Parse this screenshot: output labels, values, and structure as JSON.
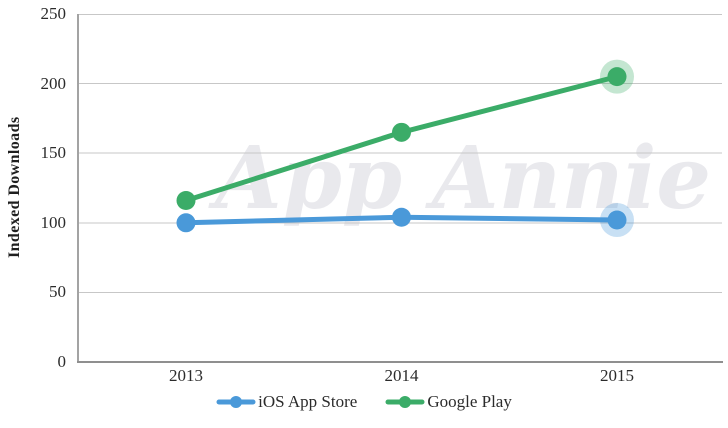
{
  "chart": {
    "y_axis_title": "Indexed Downloads",
    "watermark": "App Annie"
  },
  "legend": {
    "items": [
      {
        "label": "iOS App Store",
        "color": "#4A99D9"
      },
      {
        "label": "Google Play",
        "color": "#3BAC68"
      }
    ]
  },
  "chart_data": {
    "type": "line",
    "categories": [
      "2013",
      "2014",
      "2015"
    ],
    "series": [
      {
        "name": "iOS App Store",
        "color": "#4A99D9",
        "values": [
          100,
          104,
          102
        ]
      },
      {
        "name": "Google Play",
        "color": "#3BAC68",
        "values": [
          116,
          165,
          205
        ]
      }
    ],
    "title": "",
    "xlabel": "",
    "ylabel": "Indexed Downloads",
    "ylim": [
      0,
      250
    ],
    "y_ticks": [
      0,
      50,
      100,
      150,
      200,
      250
    ],
    "grid": true,
    "gridline_color": "#c7c7c7",
    "legend_position": "bottom",
    "last_point_highlight": true,
    "highlight_halo_opacity": 0.3,
    "watermark": "App Annie"
  }
}
